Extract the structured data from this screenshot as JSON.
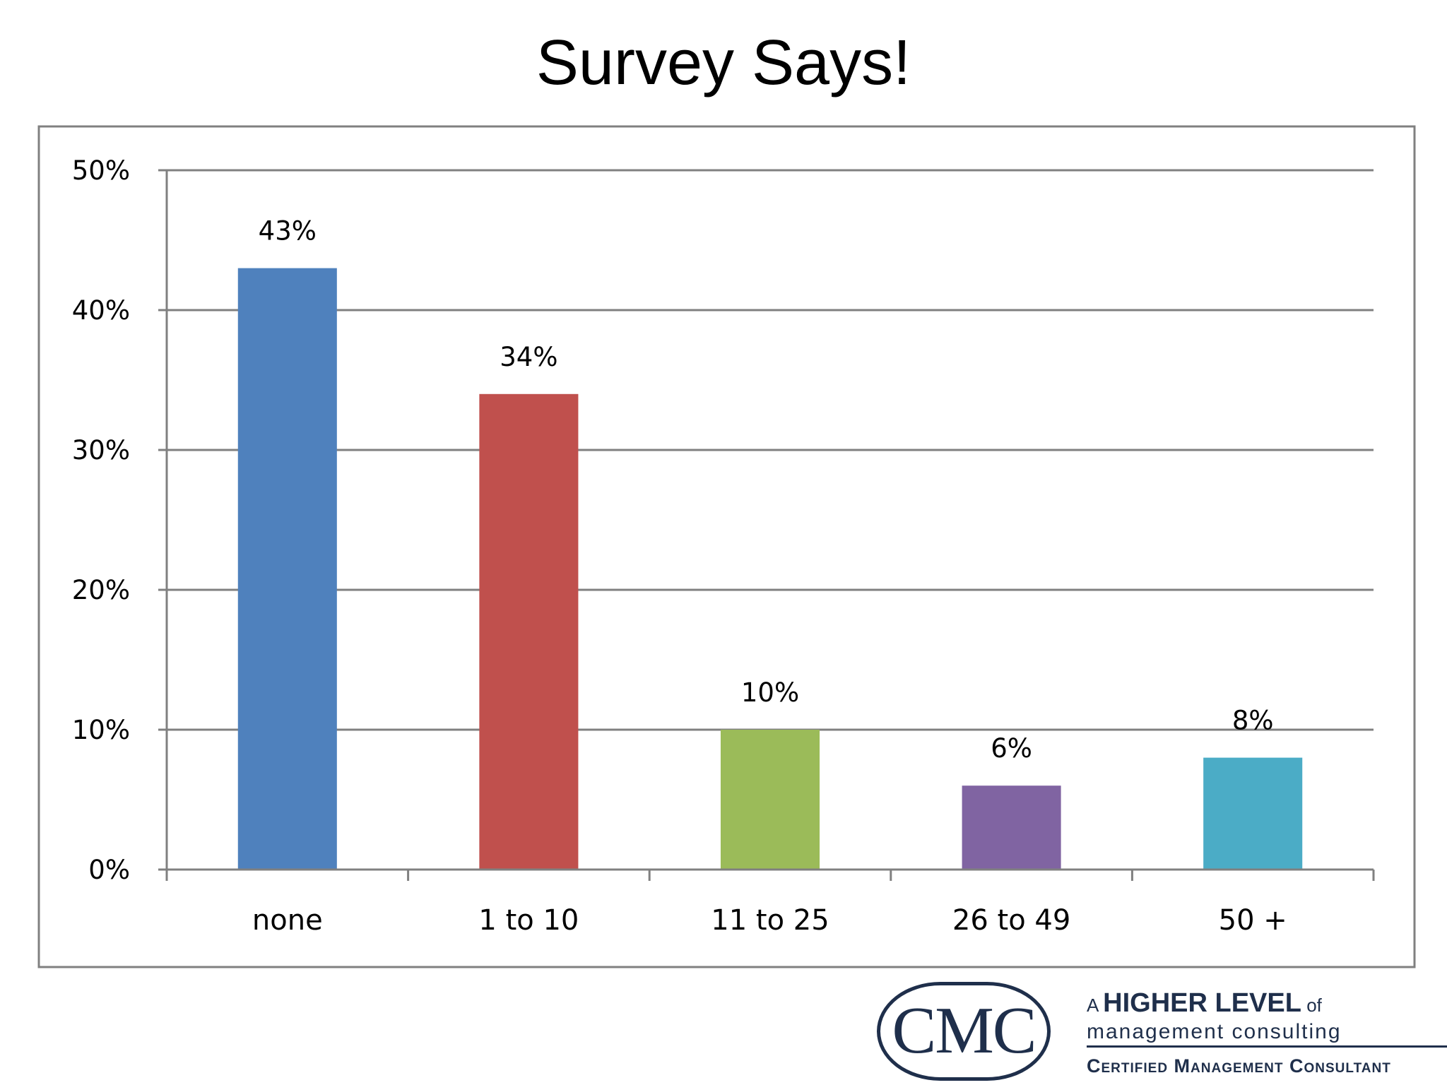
{
  "slide": {
    "title": "Survey Says!"
  },
  "chart_data": {
    "type": "bar",
    "title": "",
    "xlabel": "",
    "ylabel": "",
    "categories": [
      "none",
      "1 to 10",
      "11 to 25",
      "26 to 49",
      "50 +"
    ],
    "values": [
      43,
      34,
      10,
      6,
      8
    ],
    "data_labels": [
      "43%",
      "34%",
      "10%",
      "6%",
      "8%"
    ],
    "colors": [
      "#4f81bd",
      "#c0504d",
      "#9bbb59",
      "#8064a2",
      "#4bacc6"
    ],
    "ylim": [
      0,
      50
    ],
    "yticks": [
      0,
      10,
      20,
      30,
      40,
      50
    ],
    "ytick_labels": [
      "0%",
      "10%",
      "20%",
      "30%",
      "40%",
      "50%"
    ],
    "grid": true,
    "legend": "none"
  },
  "branding": {
    "logo_text": "CMC",
    "tagline_prefix": "A",
    "tagline_emphasis": "HIGHER LEVEL",
    "tagline_suffix": "of",
    "tagline_line2": "management consulting",
    "tagline_line3": "Certified Management Consultant"
  }
}
